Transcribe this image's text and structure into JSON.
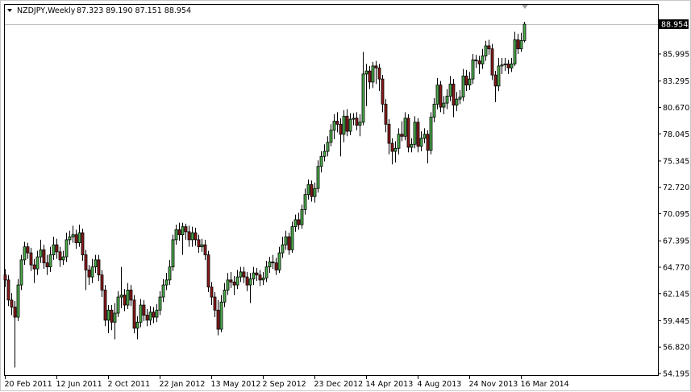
{
  "header": {
    "symbol_label": "NZDJPY,Weekly",
    "ohlc_values": "87.323 89.190 87.151 88.954",
    "menu_icon": "triangle-down-icon"
  },
  "current_price_label": "88.954",
  "colors": {
    "up": "#4cae4c",
    "down": "#8b1a1a",
    "wick": "#000000",
    "price_label_bg": "#000000",
    "price_line": "#c0c0c0"
  },
  "chart_data": {
    "type": "candlestick",
    "title": "NZDJPY,Weekly",
    "ylim": [
      54.195,
      89.19
    ],
    "y_ticks": [
      "85.995",
      "83.295",
      "80.670",
      "78.045",
      "75.345",
      "72.720",
      "70.095",
      "67.395",
      "64.770",
      "62.145",
      "59.445",
      "56.820",
      "54.195"
    ],
    "x_ticks": [
      "20 Feb 2011",
      "12 Jun 2011",
      "2 Oct 2011",
      "22 Jan 2012",
      "13 May 2012",
      "2 Sep 2012",
      "23 Dec 2012",
      "14 Apr 2013",
      "4 Aug 2013",
      "24 Nov 2013",
      "16 Mar 2014"
    ],
    "x_tick_every_bars": 16,
    "grid": false,
    "first_open": 64.0,
    "close": [
      63.5,
      61.5,
      60.8,
      59.8,
      63.0,
      65.5,
      66.8,
      66.2,
      65.0,
      64.6,
      65.8,
      66.5,
      65.2,
      64.8,
      66.0,
      67.0,
      66.3,
      65.5,
      65.8,
      67.5,
      67.8,
      68.0,
      67.2,
      68.2,
      66.0,
      64.5,
      63.8,
      64.8,
      65.5,
      64.0,
      62.5,
      59.5,
      60.5,
      59.3,
      60.2,
      61.8,
      62.0,
      61.0,
      62.5,
      61.5,
      58.7,
      59.3,
      61.0,
      60.0,
      59.5,
      60.3,
      59.8,
      60.5,
      61.8,
      63.0,
      63.5,
      64.8,
      67.5,
      68.5,
      68.0,
      68.8,
      68.3,
      67.5,
      68.2,
      67.5,
      66.8,
      67.0,
      66.0,
      62.8,
      61.8,
      60.5,
      58.6,
      61.3,
      62.5,
      63.5,
      63.3,
      63.0,
      63.8,
      64.3,
      63.8,
      63.0,
      63.6,
      64.2,
      64.0,
      63.5,
      63.7,
      64.8,
      65.3,
      65.2,
      64.5,
      66.2,
      67.0,
      67.8,
      66.5,
      68.8,
      69.5,
      69.0,
      70.5,
      72.0,
      73.0,
      71.8,
      72.6,
      74.8,
      75.8,
      76.3,
      77.2,
      78.4,
      79.3,
      79.0,
      78.0,
      79.8,
      78.3,
      79.5,
      79.6,
      78.9,
      79.2,
      84.0,
      84.3,
      83.2,
      84.8,
      84.6,
      83.5,
      81.0,
      79.0,
      77.1,
      76.3,
      76.6,
      78.0,
      77.8,
      79.6,
      76.7,
      77.0,
      79.2,
      76.8,
      77.6,
      78.0,
      76.4,
      79.7,
      81.0,
      82.9,
      80.7,
      81.1,
      81.8,
      83.0,
      80.9,
      81.5,
      81.7,
      83.8,
      82.9,
      83.5,
      85.4,
      85.3,
      85.0,
      85.8,
      86.8,
      86.5,
      83.9,
      82.8,
      84.8,
      84.9,
      85.0,
      84.6,
      85.0,
      87.4,
      86.5,
      87.323,
      88.954
    ],
    "high": [
      64.6,
      64.0,
      62.2,
      61.4,
      63.6,
      66.0,
      67.3,
      67.2,
      66.7,
      65.6,
      66.4,
      67.5,
      67.0,
      66.0,
      66.8,
      67.8,
      67.6,
      66.8,
      66.4,
      68.2,
      68.4,
      68.9,
      68.5,
      69.0,
      68.6,
      66.5,
      65.0,
      65.6,
      66.0,
      66.0,
      64.5,
      63.0,
      61.0,
      61.0,
      61.2,
      62.4,
      64.8,
      62.6,
      63.2,
      63.0,
      62.0,
      59.9,
      61.6,
      61.5,
      60.6,
      60.9,
      60.8,
      61.1,
      62.4,
      63.6,
      64.2,
      65.5,
      68.0,
      69.0,
      69.2,
      69.2,
      69.1,
      68.9,
      68.8,
      68.7,
      68.0,
      67.6,
      67.5,
      66.4,
      63.3,
      62.3,
      61.5,
      62.0,
      63.2,
      64.2,
      64.3,
      63.9,
      64.5,
      64.8,
      64.8,
      64.3,
      64.2,
      64.8,
      64.7,
      64.5,
      64.3,
      65.4,
      65.8,
      66.0,
      65.7,
      66.8,
      67.8,
      68.4,
      68.2,
      69.3,
      70.0,
      70.2,
      71.0,
      72.6,
      73.5,
      73.4,
      73.2,
      75.4,
      76.3,
      77.0,
      77.8,
      79.0,
      80.0,
      80.2,
      79.6,
      80.4,
      80.5,
      80.1,
      80.1,
      80.2,
      80.0,
      86.2,
      85.0,
      84.8,
      85.2,
      85.3,
      85.0,
      83.9,
      81.5,
      79.5,
      77.6,
      77.3,
      78.6,
      79.3,
      80.2,
      80.0,
      77.6,
      79.8,
      79.6,
      78.3,
      78.6,
      78.4,
      80.2,
      81.6,
      83.6,
      83.3,
      81.8,
      82.5,
      83.8,
      83.5,
      82.2,
      82.4,
      84.5,
      84.4,
      84.2,
      86.0,
      85.9,
      85.8,
      86.5,
      87.3,
      87.4,
      87.0,
      84.3,
      85.6,
      85.6,
      85.6,
      85.4,
      85.6,
      88.2,
      88.0,
      88.1,
      89.19
    ],
    "low": [
      62.8,
      60.9,
      60.0,
      54.8,
      59.4,
      62.5,
      65.0,
      65.6,
      64.4,
      63.2,
      64.0,
      65.2,
      64.6,
      64.0,
      64.3,
      65.5,
      65.6,
      64.8,
      65.0,
      65.3,
      67.0,
      67.2,
      66.6,
      66.8,
      65.4,
      62.5,
      63.0,
      63.2,
      64.2,
      63.4,
      61.8,
      58.9,
      58.2,
      58.5,
      57.6,
      59.8,
      60.7,
      60.4,
      60.6,
      60.9,
      58.2,
      57.6,
      58.8,
      59.4,
      58.9,
      59.0,
      59.2,
      59.3,
      60.0,
      61.3,
      62.5,
      63.0,
      64.4,
      67.0,
      67.4,
      66.0,
      67.5,
      66.8,
      66.8,
      66.9,
      66.2,
      66.3,
      65.5,
      62.3,
      61.0,
      59.8,
      58.0,
      58.3,
      60.8,
      62.0,
      62.7,
      62.0,
      62.6,
      63.3,
      63.2,
      62.4,
      61.2,
      63.0,
      63.4,
      62.9,
      63.0,
      63.3,
      64.2,
      64.6,
      64.0,
      64.2,
      65.7,
      66.5,
      66.0,
      66.2,
      68.3,
      68.5,
      68.6,
      70.0,
      71.5,
      71.3,
      71.2,
      72.2,
      74.2,
      75.3,
      75.8,
      76.8,
      77.5,
      78.2,
      75.8,
      77.2,
      77.8,
      77.9,
      78.9,
      78.4,
      77.8,
      78.9,
      80.8,
      82.5,
      82.6,
      83.0,
      82.3,
      80.2,
      78.2,
      76.0,
      75.0,
      75.2,
      76.0,
      77.3,
      77.4,
      76.2,
      76.2,
      76.6,
      76.2,
      76.3,
      77.1,
      75.1,
      76.0,
      79.2,
      80.5,
      80.2,
      80.0,
      80.5,
      81.3,
      79.7,
      80.3,
      81.0,
      81.3,
      82.3,
      82.4,
      83.0,
      84.6,
      84.0,
      84.5,
      85.3,
      85.9,
      83.4,
      81.2,
      82.3,
      84.0,
      84.3,
      84.0,
      84.2,
      84.8,
      86.0,
      86.2,
      87.151
    ]
  }
}
